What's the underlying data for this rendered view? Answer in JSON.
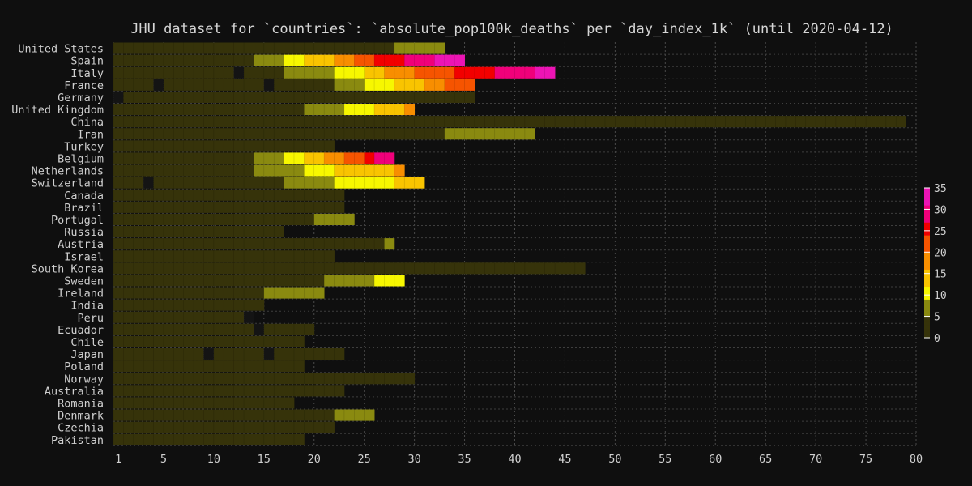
{
  "chart_data": {
    "type": "heatmap",
    "title": "JHU dataset for `countries`: `absolute_pop100k_deaths` per `day_index_1k` (until 2020-04-12)",
    "xlabel": "",
    "ylabel": "",
    "x_range": [
      1,
      80
    ],
    "x_ticks": [
      1,
      5,
      10,
      15,
      20,
      25,
      30,
      35,
      40,
      45,
      50,
      55,
      60,
      65,
      70,
      75,
      80
    ],
    "grid": true,
    "colorbar": {
      "range": [
        0,
        35
      ],
      "ticks": [
        0,
        5,
        10,
        15,
        20,
        25,
        30,
        35
      ],
      "colors": [
        "#36330a",
        "#8a8a10",
        "#f7f700",
        "#f9c400",
        "#f88e00",
        "#f65400",
        "#f20000",
        "#f0007a",
        "#ec14b4"
      ]
    },
    "rows": [
      {
        "country": "United States",
        "segments": [
          [
            1,
            28,
            0.5
          ],
          [
            29,
            33,
            6
          ]
        ]
      },
      {
        "country": "Spain",
        "segments": [
          [
            1,
            14,
            0.5
          ],
          [
            15,
            17,
            6
          ],
          [
            18,
            19,
            10
          ],
          [
            20,
            22,
            14
          ],
          [
            23,
            24,
            18
          ],
          [
            25,
            26,
            21
          ],
          [
            27,
            29,
            24.5
          ],
          [
            30,
            32,
            29
          ],
          [
            33,
            35,
            33
          ]
        ]
      },
      {
        "country": "Italy",
        "segments": [
          [
            1,
            12,
            0.5
          ],
          [
            13,
            13,
            0
          ],
          [
            14,
            17,
            0.5
          ],
          [
            18,
            22,
            6
          ],
          [
            23,
            25,
            10
          ],
          [
            26,
            27,
            14
          ],
          [
            28,
            30,
            18
          ],
          [
            31,
            34,
            21
          ],
          [
            35,
            38,
            24.5
          ],
          [
            39,
            42,
            29
          ],
          [
            43,
            44,
            33
          ]
        ]
      },
      {
        "country": "France",
        "segments": [
          [
            1,
            4,
            0.5
          ],
          [
            5,
            5,
            0
          ],
          [
            6,
            15,
            0.5
          ],
          [
            16,
            16,
            0
          ],
          [
            17,
            22,
            0.5
          ],
          [
            23,
            25,
            6
          ],
          [
            26,
            28,
            10
          ],
          [
            29,
            31,
            14
          ],
          [
            32,
            33,
            18
          ],
          [
            34,
            36,
            21
          ]
        ]
      },
      {
        "country": "Germany",
        "segments": [
          [
            1,
            1,
            0
          ],
          [
            2,
            36,
            0.5
          ]
        ]
      },
      {
        "country": "United Kingdom",
        "segments": [
          [
            1,
            19,
            0.5
          ],
          [
            20,
            23,
            6
          ],
          [
            24,
            26,
            10
          ],
          [
            27,
            29,
            14
          ],
          [
            30,
            30,
            18
          ]
        ]
      },
      {
        "country": "China",
        "segments": [
          [
            1,
            79,
            0.5
          ]
        ]
      },
      {
        "country": "Iran",
        "segments": [
          [
            1,
            33,
            0.5
          ],
          [
            34,
            42,
            6
          ]
        ]
      },
      {
        "country": "Turkey",
        "segments": [
          [
            1,
            22,
            0.5
          ]
        ]
      },
      {
        "country": "Belgium",
        "segments": [
          [
            1,
            14,
            0.5
          ],
          [
            15,
            17,
            6
          ],
          [
            18,
            19,
            10
          ],
          [
            20,
            21,
            14
          ],
          [
            22,
            23,
            18
          ],
          [
            24,
            25,
            21
          ],
          [
            26,
            26,
            24.5
          ],
          [
            27,
            28,
            29
          ]
        ]
      },
      {
        "country": "Netherlands",
        "segments": [
          [
            1,
            14,
            0.5
          ],
          [
            15,
            17,
            6
          ],
          [
            18,
            19,
            8
          ],
          [
            20,
            22,
            10
          ],
          [
            23,
            28,
            14
          ],
          [
            29,
            29,
            18
          ]
        ]
      },
      {
        "country": "Switzerland",
        "segments": [
          [
            1,
            3,
            0.5
          ],
          [
            4,
            4,
            0
          ],
          [
            5,
            17,
            0.5
          ],
          [
            18,
            22,
            6
          ],
          [
            23,
            28,
            10
          ],
          [
            29,
            31,
            14
          ]
        ]
      },
      {
        "country": "Canada",
        "segments": [
          [
            1,
            23,
            0.5
          ]
        ]
      },
      {
        "country": "Brazil",
        "segments": [
          [
            1,
            23,
            0.5
          ]
        ]
      },
      {
        "country": "Portugal",
        "segments": [
          [
            1,
            20,
            0.5
          ],
          [
            21,
            24,
            6
          ]
        ]
      },
      {
        "country": "Russia",
        "segments": [
          [
            1,
            17,
            0.5
          ]
        ]
      },
      {
        "country": "Austria",
        "segments": [
          [
            1,
            27,
            0.5
          ],
          [
            28,
            28,
            6
          ]
        ]
      },
      {
        "country": "Israel",
        "segments": [
          [
            1,
            22,
            0.5
          ]
        ]
      },
      {
        "country": "South Korea",
        "segments": [
          [
            1,
            47,
            0.5
          ]
        ]
      },
      {
        "country": "Sweden",
        "segments": [
          [
            1,
            21,
            0.5
          ],
          [
            22,
            26,
            6
          ],
          [
            27,
            29,
            10
          ]
        ]
      },
      {
        "country": "Ireland",
        "segments": [
          [
            1,
            15,
            0.5
          ],
          [
            16,
            21,
            6
          ]
        ]
      },
      {
        "country": "India",
        "segments": [
          [
            1,
            15,
            0.5
          ]
        ]
      },
      {
        "country": "Peru",
        "segments": [
          [
            1,
            13,
            0.5
          ],
          [
            14,
            14,
            0
          ]
        ]
      },
      {
        "country": "Ecuador",
        "segments": [
          [
            1,
            14,
            0.5
          ],
          [
            15,
            15,
            0
          ],
          [
            16,
            20,
            0.5
          ]
        ]
      },
      {
        "country": "Chile",
        "segments": [
          [
            1,
            19,
            0.5
          ]
        ]
      },
      {
        "country": "Japan",
        "segments": [
          [
            1,
            9,
            0.5
          ],
          [
            10,
            10,
            0
          ],
          [
            11,
            15,
            0.5
          ],
          [
            16,
            16,
            0
          ],
          [
            17,
            23,
            0.5
          ]
        ]
      },
      {
        "country": "Poland",
        "segments": [
          [
            1,
            19,
            0.5
          ]
        ]
      },
      {
        "country": "Norway",
        "segments": [
          [
            1,
            30,
            0.5
          ]
        ]
      },
      {
        "country": "Australia",
        "segments": [
          [
            1,
            23,
            0.5
          ]
        ]
      },
      {
        "country": "Romania",
        "segments": [
          [
            1,
            18,
            0.5
          ]
        ]
      },
      {
        "country": "Denmark",
        "segments": [
          [
            1,
            22,
            0.5
          ],
          [
            23,
            26,
            6
          ]
        ]
      },
      {
        "country": "Czechia",
        "segments": [
          [
            1,
            22,
            0.5
          ]
        ]
      },
      {
        "country": "Pakistan",
        "segments": [
          [
            1,
            19,
            0.5
          ]
        ]
      }
    ]
  }
}
